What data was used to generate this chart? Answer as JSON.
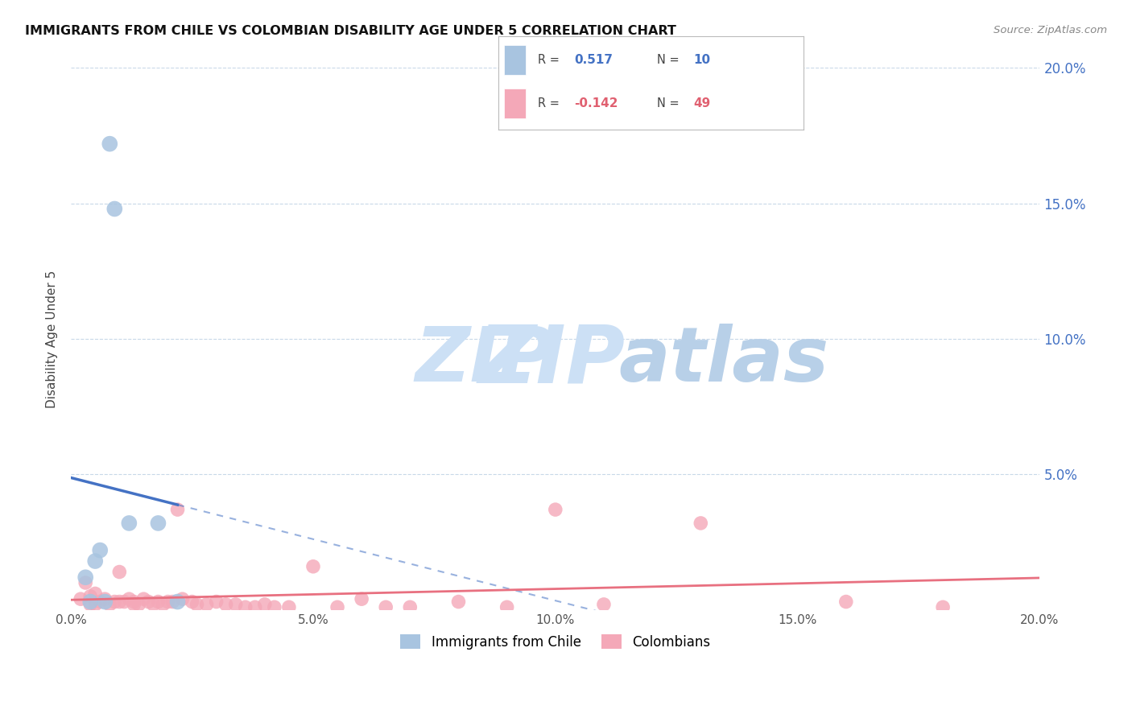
{
  "title": "IMMIGRANTS FROM CHILE VS COLOMBIAN DISABILITY AGE UNDER 5 CORRELATION CHART",
  "source": "Source: ZipAtlas.com",
  "ylabel": "Disability Age Under 5",
  "xlim": [
    0.0,
    0.2
  ],
  "ylim": [
    0.0,
    0.2
  ],
  "chile_R": 0.517,
  "chile_N": 10,
  "colombia_R": -0.142,
  "colombia_N": 49,
  "chile_color": "#a8c4e0",
  "colombia_color": "#f4a8b8",
  "chile_line_color": "#4472c4",
  "colombia_line_color": "#e87080",
  "legend_chile_label": "Immigrants from Chile",
  "legend_colombia_label": "Colombians",
  "chile_points_x": [
    0.003,
    0.004,
    0.005,
    0.006,
    0.007,
    0.008,
    0.009,
    0.012,
    0.018,
    0.022
  ],
  "chile_points_y": [
    0.012,
    0.003,
    0.018,
    0.022,
    0.003,
    0.172,
    0.148,
    0.032,
    0.032,
    0.003
  ],
  "colombia_points_x": [
    0.002,
    0.003,
    0.004,
    0.004,
    0.005,
    0.005,
    0.006,
    0.007,
    0.008,
    0.009,
    0.01,
    0.01,
    0.011,
    0.012,
    0.013,
    0.013,
    0.014,
    0.015,
    0.016,
    0.017,
    0.018,
    0.019,
    0.02,
    0.021,
    0.022,
    0.023,
    0.025,
    0.026,
    0.028,
    0.03,
    0.032,
    0.034,
    0.036,
    0.038,
    0.04,
    0.042,
    0.045,
    0.05,
    0.055,
    0.06,
    0.065,
    0.07,
    0.08,
    0.09,
    0.1,
    0.11,
    0.13,
    0.16,
    0.18
  ],
  "colombia_points_y": [
    0.004,
    0.01,
    0.005,
    0.002,
    0.002,
    0.006,
    0.003,
    0.004,
    0.002,
    0.003,
    0.014,
    0.003,
    0.003,
    0.004,
    0.002,
    0.003,
    0.002,
    0.004,
    0.003,
    0.002,
    0.003,
    0.002,
    0.003,
    0.003,
    0.037,
    0.004,
    0.003,
    0.002,
    0.002,
    0.003,
    0.002,
    0.002,
    0.001,
    0.001,
    0.002,
    0.001,
    0.001,
    0.016,
    0.001,
    0.004,
    0.001,
    0.001,
    0.003,
    0.001,
    0.037,
    0.002,
    0.032,
    0.003,
    0.001
  ],
  "grid_color": "#c8d8e8",
  "watermark_zip_color": "#cce0f5",
  "watermark_atlas_color": "#b8d0e8"
}
